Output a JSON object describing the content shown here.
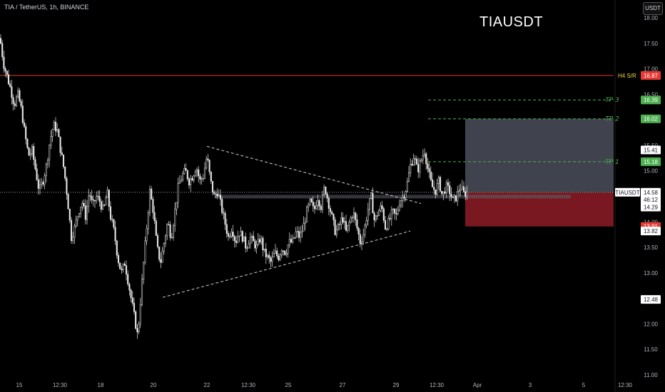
{
  "header": {
    "symbol": "TIA / TetherUS, 1h, BINANCE",
    "title": "TIAUSDT",
    "currency": "USDT"
  },
  "colors": {
    "background": "#000000",
    "candle": "#e6e6e6",
    "resistance": "#e53935",
    "target": "#4caf50",
    "profit_zone": "#434651",
    "loss_zone": "#801922",
    "trendline": "#cfcfcf"
  },
  "chart_data": {
    "type": "candlestick",
    "ylim": [
      11.0,
      18.0
    ],
    "y_ticks": [
      "18.00",
      "17.50",
      "17.00",
      "16.50",
      "16.00",
      "15.50",
      "15.00",
      "14.50",
      "14.00",
      "13.50",
      "13.00",
      "12.50",
      "12.00",
      "11.50",
      "11.00"
    ],
    "x_ticks": [
      "15",
      "12:30",
      "18",
      "20",
      "22",
      "12:30",
      "25",
      "27",
      "29",
      "12:30",
      "Apr",
      "3",
      "5",
      "12:30"
    ],
    "price_path": [
      [
        0,
        17.6
      ],
      [
        5,
        17.1
      ],
      [
        10,
        16.85
      ],
      [
        15,
        16.6
      ],
      [
        20,
        16.3
      ],
      [
        25,
        16.5
      ],
      [
        30,
        16.2
      ],
      [
        35,
        15.7
      ],
      [
        40,
        15.3
      ],
      [
        45,
        15.4
      ],
      [
        50,
        15.0
      ],
      [
        55,
        14.6
      ],
      [
        60,
        14.8
      ],
      [
        65,
        15.1
      ],
      [
        70,
        15.6
      ],
      [
        75,
        15.9
      ],
      [
        80,
        15.8
      ],
      [
        85,
        15.4
      ],
      [
        90,
        15.0
      ],
      [
        95,
        14.4
      ],
      [
        100,
        13.7
      ],
      [
        105,
        13.9
      ],
      [
        110,
        14.2
      ],
      [
        115,
        14.4
      ],
      [
        120,
        14.1
      ],
      [
        125,
        14.6
      ],
      [
        130,
        14.3
      ],
      [
        135,
        14.5
      ],
      [
        140,
        14.4
      ],
      [
        145,
        14.2
      ],
      [
        150,
        14.6
      ],
      [
        155,
        14.1
      ],
      [
        160,
        13.8
      ],
      [
        165,
        13.3
      ],
      [
        170,
        13.0
      ],
      [
        175,
        13.2
      ],
      [
        180,
        12.8
      ],
      [
        185,
        12.4
      ],
      [
        190,
        12.0
      ],
      [
        193,
        11.75
      ],
      [
        196,
        12.3
      ],
      [
        200,
        13.0
      ],
      [
        205,
        13.8
      ],
      [
        210,
        14.6
      ],
      [
        215,
        14.2
      ],
      [
        220,
        13.5
      ],
      [
        225,
        13.2
      ],
      [
        230,
        13.6
      ],
      [
        235,
        14.0
      ],
      [
        240,
        13.7
      ],
      [
        245,
        14.2
      ],
      [
        250,
        14.7
      ],
      [
        255,
        14.9
      ],
      [
        260,
        15.0
      ],
      [
        265,
        14.8
      ],
      [
        270,
        14.9
      ],
      [
        275,
        15.1
      ],
      [
        280,
        14.8
      ],
      [
        285,
        14.9
      ],
      [
        290,
        15.3
      ],
      [
        295,
        14.8
      ],
      [
        300,
        14.5
      ],
      [
        305,
        14.6
      ],
      [
        310,
        14.3
      ],
      [
        315,
        14.0
      ],
      [
        320,
        13.7
      ],
      [
        325,
        13.9
      ],
      [
        330,
        13.6
      ],
      [
        335,
        13.8
      ],
      [
        340,
        13.7
      ],
      [
        345,
        13.5
      ],
      [
        350,
        13.7
      ],
      [
        355,
        13.6
      ],
      [
        360,
        13.5
      ],
      [
        365,
        13.7
      ],
      [
        370,
        13.4
      ],
      [
        375,
        13.3
      ],
      [
        380,
        13.2
      ],
      [
        385,
        13.4
      ],
      [
        390,
        13.3
      ],
      [
        395,
        13.5
      ],
      [
        400,
        13.4
      ],
      [
        405,
        13.6
      ],
      [
        410,
        13.6
      ],
      [
        415,
        13.8
      ],
      [
        420,
        13.7
      ],
      [
        425,
        13.9
      ],
      [
        430,
        14.2
      ],
      [
        435,
        14.4
      ],
      [
        440,
        14.2
      ],
      [
        445,
        14.5
      ],
      [
        450,
        14.3
      ],
      [
        455,
        14.7
      ],
      [
        460,
        14.4
      ],
      [
        465,
        14.1
      ],
      [
        470,
        13.8
      ],
      [
        475,
        13.9
      ],
      [
        480,
        14.1
      ],
      [
        485,
        13.8
      ],
      [
        490,
        14.0
      ],
      [
        495,
        14.2
      ],
      [
        500,
        13.9
      ],
      [
        505,
        13.6
      ],
      [
        510,
        13.8
      ],
      [
        515,
        14.2
      ],
      [
        520,
        14.5
      ],
      [
        525,
        14.0
      ],
      [
        530,
        14.2
      ],
      [
        535,
        14.3
      ],
      [
        540,
        13.9
      ],
      [
        545,
        14.0
      ],
      [
        550,
        14.2
      ],
      [
        555,
        14.1
      ],
      [
        560,
        14.4
      ],
      [
        565,
        14.5
      ],
      [
        570,
        14.7
      ],
      [
        575,
        15.1
      ],
      [
        580,
        15.3
      ],
      [
        585,
        15.0
      ],
      [
        590,
        15.2
      ],
      [
        595,
        15.4
      ],
      [
        600,
        15.0
      ],
      [
        605,
        14.7
      ],
      [
        610,
        14.6
      ],
      [
        615,
        14.8
      ],
      [
        620,
        14.5
      ],
      [
        625,
        14.7
      ],
      [
        630,
        14.6
      ],
      [
        635,
        14.4
      ],
      [
        640,
        14.5
      ],
      [
        645,
        14.7
      ],
      [
        650,
        14.55
      ],
      [
        655,
        14.58
      ]
    ],
    "levels": [
      {
        "name": "H4 S/R",
        "label": "H4  S/R",
        "price": 16.87,
        "value_label": "16.87",
        "color": "#e53935"
      },
      {
        "name": "TP3",
        "label": "TP 3",
        "price": 16.39,
        "value_label": "16.39",
        "color": "#4caf50"
      },
      {
        "name": "TP2",
        "label": "TP 2",
        "price": 16.02,
        "value_label": "16.02",
        "color": "#4caf50"
      },
      {
        "name": "TP1",
        "label": "TP 1",
        "price": 15.18,
        "value_label": "15.18",
        "color": "#4caf50"
      }
    ],
    "price_tags": [
      {
        "label": "15.41",
        "price": 15.41,
        "style": "white"
      },
      {
        "label": "14.29",
        "price": 14.29,
        "style": "white"
      },
      {
        "label": "13.91",
        "price": 13.91,
        "style": "red"
      },
      {
        "label": "13.82",
        "price": 13.82,
        "style": "white"
      },
      {
        "label": "12.48",
        "price": 12.48,
        "style": "white"
      }
    ],
    "current": {
      "symbol": "TIAUSDT",
      "price": 14.58,
      "price_label": "14.58",
      "countdown": "46:12"
    },
    "position": {
      "entry": 14.58,
      "target": 16.02,
      "stop": 13.91
    },
    "triangle": {
      "upper": [
        [
          290,
          15.48
        ],
        [
          590,
          14.36
        ]
      ],
      "lower": [
        [
          228,
          12.52
        ],
        [
          575,
          13.82
        ]
      ]
    }
  }
}
